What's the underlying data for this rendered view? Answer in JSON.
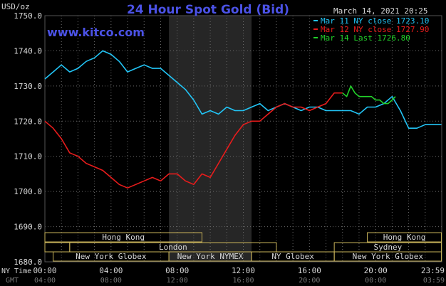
{
  "chart_data": {
    "type": "line",
    "title": "24 Hour Spot Gold (Bid)",
    "source": "www.kitco.com",
    "timestamp": "March 14, 2021 20:25",
    "ylabel": "USD/oz",
    "ylim": [
      1680,
      1750
    ],
    "yticks": [
      "1680.0",
      "1690.0",
      "1700.0",
      "1710.0",
      "1720.0",
      "1730.0",
      "1740.0",
      "1750.0"
    ],
    "xlim": [
      0,
      24
    ],
    "xticks_ny": [
      "00:00",
      "04:00",
      "08:00",
      "12:00",
      "16:00",
      "20:00",
      "23:59"
    ],
    "xticks_gmt": [
      "04:00",
      "08:00",
      "12:00",
      "16:00",
      "20:00",
      "00:00",
      "03:59"
    ],
    "ny_label": "NY Time",
    "gmt_label": "GMT",
    "legend_position": "top-right",
    "series": [
      {
        "name": "Mar 11 NY close 1723.10",
        "color": "#22c4f5",
        "x": [
          0,
          0.5,
          1,
          1.5,
          2,
          2.5,
          3,
          3.5,
          4,
          4.5,
          5,
          5.5,
          6,
          6.5,
          7,
          7.5,
          8,
          8.5,
          9,
          9.5,
          10,
          10.5,
          11,
          11.5,
          12,
          12.5,
          13,
          13.5,
          14,
          14.5,
          15,
          15.5,
          16,
          16.5,
          17,
          17.5,
          18,
          18.5,
          19,
          19.5,
          20,
          20.5,
          21,
          21.5,
          22,
          22.5,
          23,
          23.5,
          23.98
        ],
        "values": [
          1732,
          1734,
          1736,
          1734,
          1735,
          1737,
          1738,
          1740,
          1739,
          1737,
          1734,
          1735,
          1736,
          1735,
          1735,
          1733,
          1731,
          1729,
          1726,
          1722,
          1723,
          1722,
          1724,
          1723,
          1723,
          1724,
          1725,
          1723,
          1724,
          1725,
          1724,
          1723,
          1724,
          1724,
          1723,
          1723,
          1723,
          1723,
          1722,
          1724,
          1724,
          1725,
          1727,
          1723,
          1718,
          1718,
          1719,
          1719,
          1719
        ]
      },
      {
        "name": "Mar 12 NY close 1727.90",
        "color": "#e81c1c",
        "x": [
          0,
          0.5,
          1,
          1.5,
          2,
          2.5,
          3,
          3.5,
          4,
          4.5,
          5,
          5.5,
          6,
          6.5,
          7,
          7.5,
          8,
          8.5,
          9,
          9.5,
          10,
          10.5,
          11,
          11.5,
          12,
          12.5,
          13,
          13.5,
          14,
          14.5,
          15,
          15.5,
          16,
          16.5,
          17,
          17.5,
          18
        ],
        "values": [
          1720,
          1718,
          1715,
          1711,
          1710,
          1708,
          1707,
          1706,
          1704,
          1702,
          1701,
          1702,
          1703,
          1704,
          1703,
          1705,
          1705,
          1703,
          1702,
          1705,
          1704,
          1708,
          1712,
          1716,
          1719,
          1720,
          1720,
          1722,
          1724,
          1725,
          1724,
          1724,
          1723,
          1724,
          1725,
          1728,
          1728
        ]
      },
      {
        "name": "Mar 14 Last 1726.80",
        "color": "#22d22a",
        "x": [
          18,
          18.25,
          18.5,
          18.75,
          19,
          19.25,
          19.5,
          19.75,
          20,
          20.25,
          20.5,
          20.75,
          21,
          21.2
        ],
        "values": [
          1728,
          1727,
          1730,
          1728,
          1727,
          1727,
          1727,
          1727,
          1726,
          1726,
          1725,
          1725,
          1726,
          1727
        ]
      }
    ],
    "sessions": [
      {
        "label": "Hong Kong",
        "row": 0,
        "x0": 0,
        "x1": 9.5
      },
      {
        "label": "",
        "row": 1,
        "x0": 0,
        "x1": 1.5
      },
      {
        "label": "London",
        "row": 1,
        "x0": 1.5,
        "x1": 14
      },
      {
        "label": "New York Globex",
        "row": 2,
        "x0": 0.5,
        "x1": 7.5
      },
      {
        "label": "New York NYMEX",
        "row": 2,
        "x0": 7.5,
        "x1": 12.5
      },
      {
        "label": "NY Globex",
        "row": 2,
        "x0": 12.5,
        "x1": 17.5
      },
      {
        "label": "Hong Kong",
        "row": 0,
        "x0": 19.5,
        "x1": 23.98
      },
      {
        "label": "Sydney",
        "row": 1,
        "x0": 17.5,
        "x1": 23.98
      },
      {
        "label": "New York Globex",
        "row": 2,
        "x0": 17.5,
        "x1": 23.98
      }
    ],
    "shaded_region": [
      7.5,
      12.5
    ]
  }
}
